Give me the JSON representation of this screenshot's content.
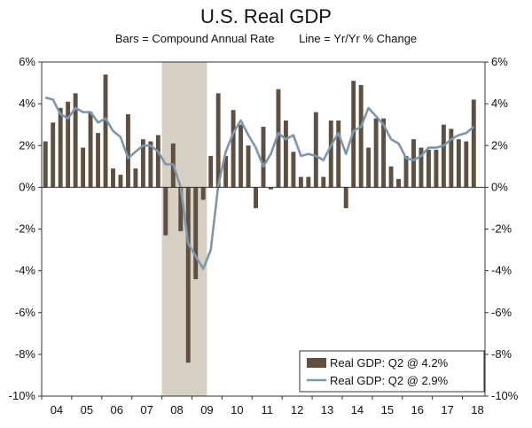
{
  "title": "U.S. Real GDP",
  "subtitle": {
    "bars": "Bars = Compound Annual Rate",
    "line": "Line = Yr/Yr % Change"
  },
  "chart_data": {
    "type": "bar",
    "title": "U.S. Real GDP",
    "ylim": [
      -10,
      6
    ],
    "y_ticks": [
      6,
      4,
      2,
      0,
      -2,
      -4,
      -6,
      -8,
      -10
    ],
    "y_tick_labels_left": [
      "6%",
      "4%",
      "2%",
      "0%",
      "-2%",
      "-4%",
      "-6%",
      "-8%",
      "-10%"
    ],
    "y_tick_labels_right": [
      "6%",
      "4%",
      "2%",
      "0%",
      "-2%",
      "-4%",
      "-6%",
      "-8%",
      "-10%"
    ],
    "x_tick_labels": [
      "04",
      "05",
      "06",
      "07",
      "08",
      "09",
      "10",
      "11",
      "12",
      "13",
      "14",
      "15",
      "16",
      "17",
      "18"
    ],
    "recession_shading": {
      "start_year": 2008.0,
      "end_year": 2009.5
    },
    "legend_position": "bottom-right",
    "colors": {
      "bars": "#5e4f40",
      "line": "#7a97ad",
      "recession": "#d6cfc3"
    },
    "series": [
      {
        "name": "Real GDP: Q2 @ 4.2%",
        "kind": "bar",
        "values": [
          2.2,
          3.1,
          3.8,
          4.1,
          4.5,
          1.9,
          3.6,
          2.6,
          5.4,
          0.9,
          0.6,
          3.5,
          0.9,
          2.3,
          2.2,
          2.5,
          -2.3,
          2.1,
          -2.1,
          -8.4,
          -4.4,
          -0.6,
          1.5,
          4.5,
          1.5,
          3.7,
          3.0,
          2.0,
          -1.0,
          2.9,
          -0.1,
          4.7,
          3.2,
          1.7,
          0.5,
          0.5,
          3.6,
          0.5,
          3.2,
          3.2,
          -1.0,
          5.1,
          4.9,
          1.9,
          3.3,
          3.3,
          1.0,
          0.4,
          1.5,
          2.3,
          1.9,
          1.8,
          1.8,
          3.0,
          2.8,
          2.3,
          2.2,
          4.2
        ]
      },
      {
        "name": "Real GDP: Q2 @ 2.9%",
        "kind": "line",
        "values": [
          4.3,
          4.2,
          3.5,
          3.3,
          3.8,
          3.6,
          3.6,
          3.1,
          3.3,
          2.7,
          2.4,
          1.4,
          1.7,
          2.0,
          2.0,
          1.7,
          1.1,
          1.1,
          0.0,
          -2.7,
          -3.3,
          -3.9,
          -3.0,
          0.1,
          1.7,
          2.6,
          3.2,
          2.5,
          1.9,
          1.0,
          1.6,
          2.6,
          2.3,
          2.5,
          1.5,
          1.6,
          1.5,
          1.3,
          2.0,
          2.6,
          1.6,
          2.7,
          2.9,
          3.8,
          3.4,
          3.0,
          2.3,
          2.1,
          1.4,
          1.3,
          1.5,
          1.9,
          1.9,
          2.0,
          2.3,
          2.5,
          2.6,
          2.9
        ]
      }
    ]
  }
}
